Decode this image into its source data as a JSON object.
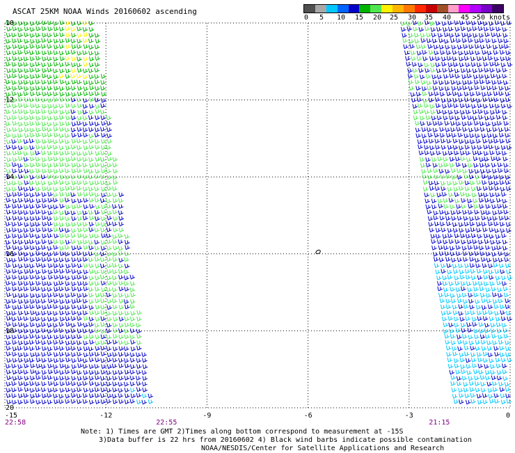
{
  "title": "ASCAT 25KM NOAA Winds 20160602 ascending",
  "colorbar": {
    "colors": [
      "#505050",
      "#a8a8a8",
      "#00c8ff",
      "#0064ff",
      "#0000c8",
      "#00b400",
      "#50e650",
      "#fff000",
      "#ffb400",
      "#ff7800",
      "#ff2800",
      "#c80000",
      "#a05028",
      "#ffa0c8",
      "#ff00ff",
      "#b400ff",
      "#7800c8",
      "#3c0064"
    ],
    "labels": [
      "0",
      "5",
      "10",
      "15",
      "20",
      "25",
      "30",
      "35",
      "40",
      "45",
      ">50 knots"
    ]
  },
  "axes": {
    "lon_ticks": [
      {
        "value": -15,
        "label": "-15"
      },
      {
        "value": -12,
        "label": "-12"
      },
      {
        "value": -9,
        "label": "-9"
      },
      {
        "value": -6,
        "label": "-6"
      },
      {
        "value": -3,
        "label": "-3"
      },
      {
        "value": 0,
        "label": "0"
      }
    ],
    "lat_ticks": [
      {
        "value": -10,
        "label": "10"
      },
      {
        "value": -12,
        "label": "12"
      },
      {
        "value": -14,
        "label": "14"
      },
      {
        "value": -16,
        "label": "16"
      },
      {
        "value": -18,
        "label": "18"
      },
      {
        "value": -20,
        "label": "20"
      }
    ],
    "lon_range": [
      -15,
      0
    ],
    "lat_range": [
      -20,
      -10
    ],
    "grid": true
  },
  "time_labels": [
    {
      "text": "22:58",
      "lon": -15
    },
    {
      "text": "22:55",
      "lon": -10.2
    },
    {
      "text": "21:15",
      "lon": -2.1
    }
  ],
  "swaths": [
    {
      "name": "west",
      "top_west": -15,
      "top_east": -12.3,
      "bottom_west": -15,
      "bottom_east": -10.6
    },
    {
      "name": "east",
      "top_west": -3.3,
      "top_east": 0,
      "bottom_west": -1.7,
      "bottom_east": 0
    }
  ],
  "island": {
    "lon": -5.7,
    "lat": -15.95
  },
  "wind_colors": {
    "calm": "#00c8ff",
    "moderate": "#0000c8",
    "fresh": "#00b400",
    "brisk": "#50e650",
    "strong": "#fff000"
  },
  "notes": [
    "Note: 1) Times are GMT 2)Times along bottom correspond to measurement at -15S",
    "3)Data buffer is 22 hrs from 20160602 4) Black wind barbs indicate possible contamination",
    "NOAA/NESDIS/Center for Satellite Applications and Research"
  ]
}
